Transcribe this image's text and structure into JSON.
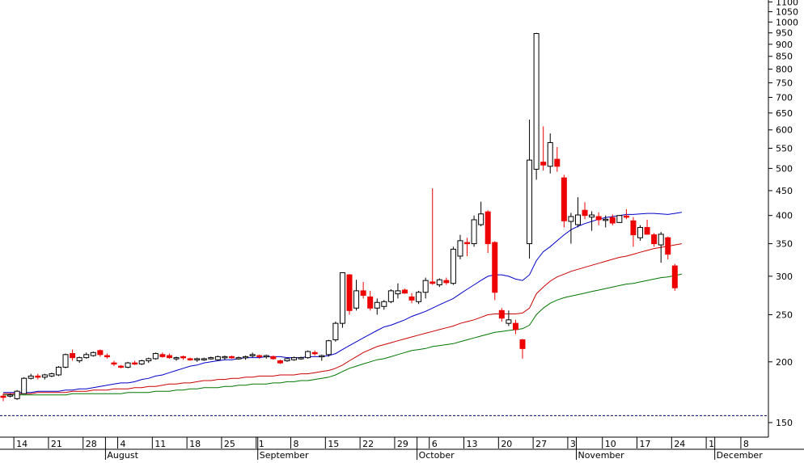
{
  "chart_data": {
    "type": "candlestick",
    "y_scale": "log",
    "ylim": [
      140,
      1110
    ],
    "y_ticks": [
      150,
      200,
      250,
      300,
      350,
      400,
      450,
      500,
      550,
      600,
      650,
      700,
      750,
      800,
      850,
      900,
      950,
      1000,
      1050,
      1100
    ],
    "y_tick_labels": [
      "150",
      "200",
      "250",
      "300",
      "350",
      "400",
      "450",
      "500",
      "550",
      "600",
      "650",
      "700",
      "750",
      "800",
      "850",
      "900",
      "950",
      "1000",
      "1050",
      "1100"
    ],
    "reference_line": {
      "value": 155,
      "style": "dashed",
      "color": "#000066"
    },
    "x_day_labels": [
      "14",
      "21",
      "28",
      "4",
      "11",
      "18",
      "25",
      "1",
      "8",
      "15",
      "22",
      "29",
      "6",
      "13",
      "20",
      "27",
      "3",
      "10",
      "17",
      "24",
      "1",
      "8"
    ],
    "x_month_labels": [
      "August",
      "September",
      "October",
      "November",
      "December"
    ],
    "x_day_label_index": [
      2,
      7,
      12,
      17,
      22,
      27,
      32,
      37,
      42,
      47,
      52,
      57,
      62,
      67,
      72,
      77,
      82,
      87,
      92,
      97,
      102,
      107
    ],
    "x_month_label_index": [
      15,
      37,
      60,
      83,
      103
    ],
    "candles": [
      {
        "o": 170,
        "h": 172,
        "l": 166,
        "c": 170,
        "up": false
      },
      {
        "o": 170,
        "h": 172,
        "l": 169,
        "c": 171,
        "up": true
      },
      {
        "o": 168,
        "h": 175,
        "l": 167,
        "c": 174,
        "up": true
      },
      {
        "o": 172,
        "h": 186,
        "l": 172,
        "c": 185,
        "up": true
      },
      {
        "o": 185,
        "h": 189,
        "l": 184,
        "c": 187,
        "up": true
      },
      {
        "o": 187,
        "h": 189,
        "l": 184,
        "c": 186,
        "up": false
      },
      {
        "o": 186,
        "h": 189,
        "l": 184,
        "c": 188,
        "up": true
      },
      {
        "o": 187,
        "h": 190,
        "l": 186,
        "c": 189,
        "up": true
      },
      {
        "o": 188,
        "h": 196,
        "l": 187,
        "c": 195,
        "up": true
      },
      {
        "o": 195,
        "h": 208,
        "l": 194,
        "c": 207,
        "up": true
      },
      {
        "o": 208,
        "h": 212,
        "l": 201,
        "c": 204,
        "up": false
      },
      {
        "o": 201,
        "h": 205,
        "l": 199,
        "c": 204,
        "up": true
      },
      {
        "o": 204,
        "h": 209,
        "l": 203,
        "c": 207,
        "up": true
      },
      {
        "o": 206,
        "h": 210,
        "l": 205,
        "c": 209,
        "up": true
      },
      {
        "o": 211,
        "h": 212,
        "l": 205,
        "c": 207,
        "up": false
      },
      {
        "o": 206,
        "h": 208,
        "l": 203,
        "c": 205,
        "up": false
      },
      {
        "o": 199,
        "h": 201,
        "l": 196,
        "c": 198,
        "up": false
      },
      {
        "o": 196,
        "h": 197,
        "l": 194,
        "c": 195,
        "up": false
      },
      {
        "o": 195,
        "h": 200,
        "l": 194,
        "c": 199,
        "up": true
      },
      {
        "o": 198,
        "h": 201,
        "l": 197,
        "c": 199,
        "up": false
      },
      {
        "o": 198,
        "h": 202,
        "l": 197,
        "c": 201,
        "up": true
      },
      {
        "o": 201,
        "h": 204,
        "l": 199,
        "c": 203,
        "up": true
      },
      {
        "o": 203,
        "h": 209,
        "l": 202,
        "c": 208,
        "up": true
      },
      {
        "o": 207,
        "h": 209,
        "l": 204,
        "c": 205,
        "up": false
      },
      {
        "o": 206,
        "h": 208,
        "l": 203,
        "c": 204,
        "up": false
      },
      {
        "o": 203,
        "h": 205,
        "l": 201,
        "c": 204,
        "up": true
      },
      {
        "o": 205,
        "h": 206,
        "l": 202,
        "c": 204,
        "up": false
      },
      {
        "o": 203,
        "h": 204,
        "l": 201,
        "c": 202,
        "up": false
      },
      {
        "o": 202,
        "h": 204,
        "l": 200,
        "c": 203,
        "up": true
      },
      {
        "o": 202,
        "h": 204,
        "l": 201,
        "c": 203,
        "up": true
      },
      {
        "o": 203,
        "h": 205,
        "l": 202,
        "c": 204,
        "up": true
      },
      {
        "o": 202,
        "h": 206,
        "l": 201,
        "c": 205,
        "up": true
      },
      {
        "o": 204,
        "h": 206,
        "l": 202,
        "c": 205,
        "up": true
      },
      {
        "o": 205,
        "h": 206,
        "l": 203,
        "c": 204,
        "up": false
      },
      {
        "o": 203,
        "h": 205,
        "l": 202,
        "c": 204,
        "up": true
      },
      {
        "o": 204,
        "h": 206,
        "l": 202,
        "c": 205,
        "up": true
      },
      {
        "o": 206,
        "h": 209,
        "l": 204,
        "c": 207,
        "up": true
      },
      {
        "o": 205,
        "h": 207,
        "l": 203,
        "c": 206,
        "up": false
      },
      {
        "o": 205,
        "h": 207,
        "l": 203,
        "c": 206,
        "up": true
      },
      {
        "o": 205,
        "h": 206,
        "l": 202,
        "c": 203,
        "up": false
      },
      {
        "o": 201,
        "h": 202,
        "l": 198,
        "c": 199,
        "up": false
      },
      {
        "o": 201,
        "h": 204,
        "l": 200,
        "c": 203,
        "up": true
      },
      {
        "o": 202,
        "h": 205,
        "l": 201,
        "c": 204,
        "up": true
      },
      {
        "o": 203,
        "h": 205,
        "l": 202,
        "c": 204,
        "up": true
      },
      {
        "o": 204,
        "h": 211,
        "l": 203,
        "c": 210,
        "up": true
      },
      {
        "o": 208,
        "h": 211,
        "l": 206,
        "c": 209,
        "up": false
      },
      {
        "o": 205,
        "h": 207,
        "l": 201,
        "c": 206,
        "up": true
      },
      {
        "o": 207,
        "h": 222,
        "l": 205,
        "c": 221,
        "up": true
      },
      {
        "o": 222,
        "h": 242,
        "l": 220,
        "c": 240,
        "up": true
      },
      {
        "o": 240,
        "h": 305,
        "l": 235,
        "c": 305,
        "up": true
      },
      {
        "o": 302,
        "h": 303,
        "l": 250,
        "c": 255,
        "up": false
      },
      {
        "o": 258,
        "h": 295,
        "l": 255,
        "c": 280,
        "up": true
      },
      {
        "o": 280,
        "h": 292,
        "l": 270,
        "c": 274,
        "up": false
      },
      {
        "o": 272,
        "h": 280,
        "l": 255,
        "c": 258,
        "up": false
      },
      {
        "o": 258,
        "h": 270,
        "l": 250,
        "c": 265,
        "up": true
      },
      {
        "o": 260,
        "h": 268,
        "l": 256,
        "c": 266,
        "up": true
      },
      {
        "o": 266,
        "h": 282,
        "l": 264,
        "c": 280,
        "up": true
      },
      {
        "o": 276,
        "h": 290,
        "l": 270,
        "c": 280,
        "up": true
      },
      {
        "o": 281,
        "h": 283,
        "l": 276,
        "c": 277,
        "up": false
      },
      {
        "o": 272,
        "h": 277,
        "l": 264,
        "c": 268,
        "up": false
      },
      {
        "o": 266,
        "h": 280,
        "l": 263,
        "c": 278,
        "up": true
      },
      {
        "o": 278,
        "h": 298,
        "l": 270,
        "c": 294,
        "up": true
      },
      {
        "o": 292,
        "h": 455,
        "l": 288,
        "c": 290,
        "up": false
      },
      {
        "o": 288,
        "h": 297,
        "l": 285,
        "c": 295,
        "up": true
      },
      {
        "o": 294,
        "h": 298,
        "l": 288,
        "c": 291,
        "up": false
      },
      {
        "o": 290,
        "h": 345,
        "l": 288,
        "c": 341,
        "up": true
      },
      {
        "o": 330,
        "h": 365,
        "l": 325,
        "c": 355,
        "up": true
      },
      {
        "o": 352,
        "h": 360,
        "l": 330,
        "c": 351,
        "up": false
      },
      {
        "o": 350,
        "h": 400,
        "l": 345,
        "c": 392,
        "up": true
      },
      {
        "o": 383,
        "h": 427,
        "l": 380,
        "c": 403,
        "up": true
      },
      {
        "o": 407,
        "h": 410,
        "l": 335,
        "c": 350,
        "up": false
      },
      {
        "o": 352,
        "h": 354,
        "l": 268,
        "c": 278,
        "up": false
      },
      {
        "o": 255,
        "h": 258,
        "l": 242,
        "c": 246,
        "up": false
      },
      {
        "o": 244,
        "h": 255,
        "l": 237,
        "c": 240,
        "up": true
      },
      {
        "o": 240,
        "h": 244,
        "l": 228,
        "c": 233,
        "up": false
      },
      {
        "o": 222,
        "h": 223,
        "l": 203,
        "c": 213,
        "up": false
      },
      {
        "o": 350,
        "h": 630,
        "l": 326,
        "c": 520,
        "up": true
      },
      {
        "o": 498,
        "h": 950,
        "l": 474,
        "c": 947,
        "up": true
      },
      {
        "o": 515,
        "h": 610,
        "l": 495,
        "c": 508,
        "up": false
      },
      {
        "o": 505,
        "h": 590,
        "l": 488,
        "c": 565,
        "up": true
      },
      {
        "o": 522,
        "h": 553,
        "l": 492,
        "c": 505,
        "up": false
      },
      {
        "o": 478,
        "h": 485,
        "l": 378,
        "c": 390,
        "up": false
      },
      {
        "o": 389,
        "h": 405,
        "l": 350,
        "c": 398,
        "up": true
      },
      {
        "o": 383,
        "h": 436,
        "l": 378,
        "c": 401,
        "up": true
      },
      {
        "o": 410,
        "h": 426,
        "l": 393,
        "c": 400,
        "up": false
      },
      {
        "o": 401,
        "h": 408,
        "l": 372,
        "c": 397,
        "up": true
      },
      {
        "o": 398,
        "h": 406,
        "l": 382,
        "c": 392,
        "up": false
      },
      {
        "o": 393,
        "h": 400,
        "l": 378,
        "c": 392,
        "up": true
      },
      {
        "o": 396,
        "h": 402,
        "l": 382,
        "c": 386,
        "up": false
      },
      {
        "o": 387,
        "h": 401,
        "l": 386,
        "c": 400,
        "up": true
      },
      {
        "o": 399,
        "h": 412,
        "l": 393,
        "c": 397,
        "up": false
      },
      {
        "o": 390,
        "h": 397,
        "l": 345,
        "c": 365,
        "up": false
      },
      {
        "o": 360,
        "h": 382,
        "l": 355,
        "c": 378,
        "up": true
      },
      {
        "o": 378,
        "h": 392,
        "l": 365,
        "c": 366,
        "up": false
      },
      {
        "o": 365,
        "h": 368,
        "l": 345,
        "c": 350,
        "up": false
      },
      {
        "o": 348,
        "h": 370,
        "l": 320,
        "c": 366,
        "up": true
      },
      {
        "o": 360,
        "h": 362,
        "l": 325,
        "c": 333,
        "up": false
      },
      {
        "o": 315,
        "h": 318,
        "l": 280,
        "c": 284,
        "up": false
      }
    ],
    "series": [
      {
        "color": "#0000cc",
        "values": [
          173,
          173,
          173,
          173,
          173,
          174,
          174,
          174,
          174,
          175,
          175,
          176,
          176,
          177,
          178,
          179,
          180,
          181,
          181,
          182,
          184,
          185,
          187,
          188,
          190,
          192,
          194,
          196,
          197,
          199,
          200,
          201,
          202,
          202,
          203,
          204,
          204,
          204,
          205,
          205,
          205,
          204,
          204,
          204,
          205,
          205,
          205,
          206,
          208,
          212,
          216,
          220,
          224,
          228,
          232,
          236,
          238,
          241,
          244,
          248,
          251,
          254,
          258,
          262,
          266,
          270,
          276,
          282,
          288,
          294,
          300,
          302,
          302,
          300,
          296,
          294,
          302,
          323,
          337,
          345,
          355,
          365,
          374,
          380,
          385,
          389,
          393,
          396,
          398,
          400,
          402,
          402,
          403,
          404,
          404,
          403,
          402,
          404,
          406
        ]
      },
      {
        "color": "#cc0000",
        "values": [
          172,
          172,
          172,
          172,
          172,
          173,
          173,
          173,
          173,
          173,
          174,
          174,
          174,
          175,
          175,
          175,
          176,
          176,
          176,
          177,
          177,
          178,
          178,
          179,
          180,
          180,
          181,
          181,
          182,
          183,
          183,
          184,
          184,
          185,
          185,
          186,
          186,
          187,
          187,
          187,
          188,
          188,
          188,
          189,
          189,
          190,
          191,
          192,
          194,
          197,
          201,
          205,
          209,
          212,
          215,
          217,
          219,
          221,
          223,
          225,
          227,
          229,
          231,
          233,
          235,
          237,
          240,
          242,
          244,
          247,
          250,
          251,
          251,
          251,
          251,
          252,
          258,
          276,
          285,
          293,
          299,
          303,
          307,
          310,
          313,
          316,
          319,
          322,
          325,
          328,
          330,
          333,
          336,
          339,
          342,
          344,
          346,
          348,
          350
        ]
      },
      {
        "color": "#007700",
        "values": [
          171,
          171,
          171,
          171,
          171,
          171,
          171,
          171,
          171,
          171,
          172,
          172,
          172,
          172,
          172,
          172,
          172,
          172,
          173,
          173,
          173,
          173,
          174,
          174,
          174,
          175,
          175,
          176,
          176,
          177,
          177,
          177,
          178,
          178,
          179,
          179,
          180,
          180,
          180,
          181,
          181,
          182,
          182,
          183,
          183,
          184,
          185,
          186,
          188,
          191,
          194,
          196,
          198,
          200,
          202,
          203,
          205,
          207,
          209,
          211,
          212,
          213,
          215,
          216,
          217,
          218,
          220,
          222,
          224,
          226,
          228,
          230,
          231,
          232,
          233,
          234,
          238,
          250,
          258,
          264,
          268,
          271,
          273,
          275,
          277,
          279,
          281,
          283,
          285,
          287,
          289,
          290,
          292,
          294,
          296,
          298,
          299,
          301,
          303
        ]
      }
    ]
  }
}
